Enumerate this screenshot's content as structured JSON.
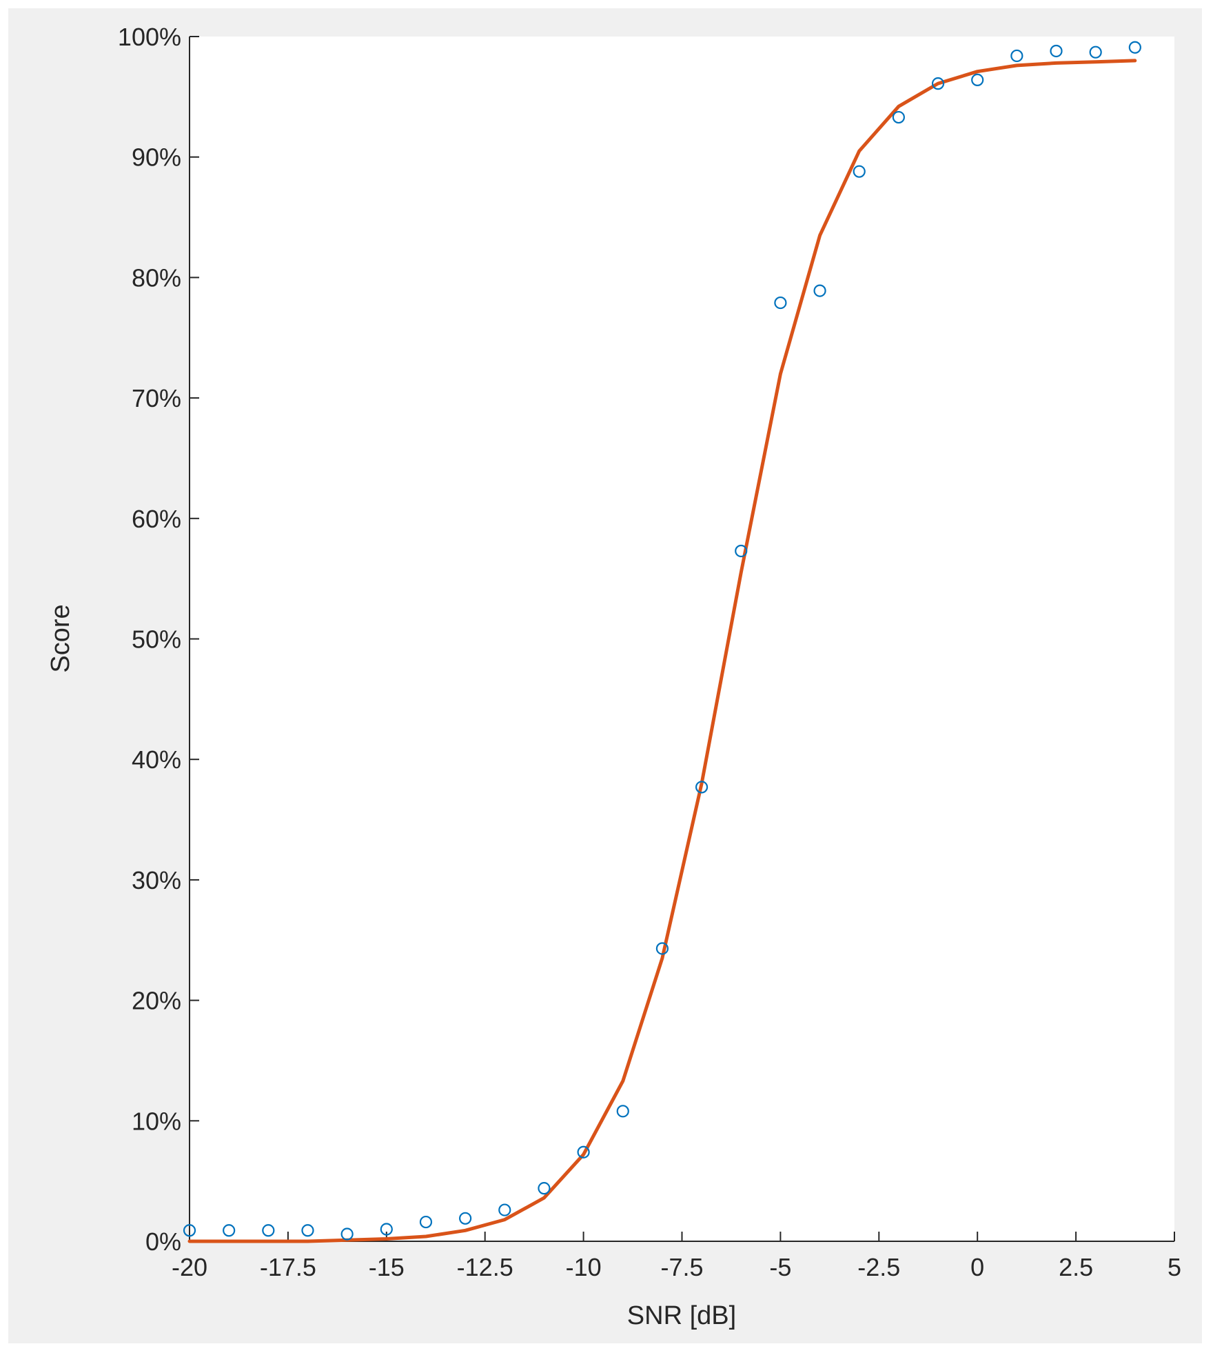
{
  "chart_data": {
    "type": "scatter",
    "title": "",
    "xlabel": "SNR [dB]",
    "ylabel": "Score",
    "xlim": [
      -20,
      5
    ],
    "ylim": [
      0,
      100
    ],
    "xticks": [
      -20,
      -17.5,
      -15,
      -12.5,
      -10,
      -7.5,
      -5,
      -2.5,
      0,
      2.5,
      5
    ],
    "xtick_labels": [
      "-20",
      "-17.5",
      "-15",
      "-12.5",
      "-10",
      "-7.5",
      "-5",
      "-2.5",
      "0",
      "2.5",
      "5"
    ],
    "yticks": [
      0,
      10,
      20,
      30,
      40,
      50,
      60,
      70,
      80,
      90,
      100
    ],
    "ytick_labels": [
      "0%",
      "10%",
      "20%",
      "30%",
      "40%",
      "50%",
      "60%",
      "70%",
      "80%",
      "90%",
      "100%"
    ],
    "grid": false,
    "legend": "none",
    "series": [
      {
        "type": "scatter",
        "marker": "circle-open",
        "color": "#0072bd",
        "x": [
          -20,
          -19,
          -18,
          -17,
          -16,
          -15,
          -14,
          -13,
          -12,
          -11,
          -10,
          -9,
          -8,
          -7,
          -6,
          -5,
          -4,
          -3,
          -2,
          -1,
          0,
          1,
          2,
          3,
          4
        ],
        "y": [
          0.9,
          0.9,
          0.9,
          0.9,
          0.6,
          1.0,
          1.6,
          1.9,
          2.6,
          4.4,
          7.4,
          10.8,
          24.3,
          37.7,
          57.3,
          77.9,
          78.9,
          88.8,
          93.3,
          96.1,
          96.4,
          98.4,
          98.8,
          98.7,
          99.1
        ]
      },
      {
        "type": "line",
        "color": "#d95319",
        "x": [
          -20,
          -19,
          -18,
          -17,
          -16,
          -15,
          -14,
          -13,
          -12,
          -11,
          -10,
          -9,
          -8,
          -7,
          -6,
          -5,
          -4,
          -3,
          -2,
          -1,
          0,
          1,
          2,
          3,
          4
        ],
        "y": [
          0,
          0,
          0,
          0,
          0.1,
          0.2,
          0.4,
          0.9,
          1.8,
          3.6,
          7.2,
          13.3,
          23.5,
          38.0,
          55.5,
          72.0,
          83.5,
          90.5,
          94.2,
          96.1,
          97.1,
          97.6,
          97.8,
          97.9,
          98.0
        ]
      }
    ]
  }
}
